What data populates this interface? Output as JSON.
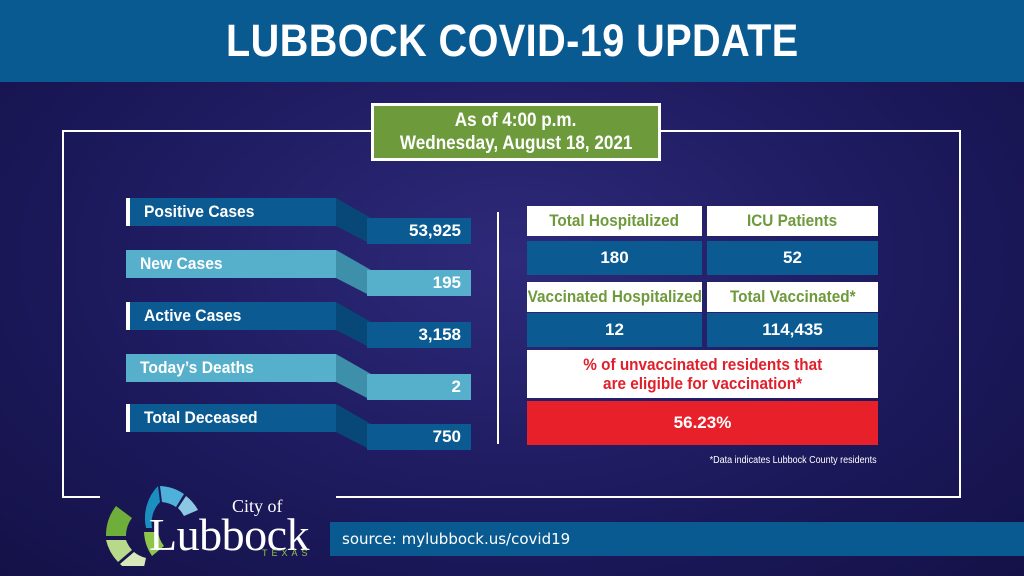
{
  "header": {
    "title": "LUBBOCK COVID-19 UPDATE"
  },
  "as_of": {
    "line1": "As of 4:00 p.m.",
    "line2": "Wednesday, August 18, 2021"
  },
  "left_stats": [
    {
      "label": "Positive Cases",
      "value": "53,925",
      "style": "dark"
    },
    {
      "label": "New Cases",
      "value": "195",
      "style": "light"
    },
    {
      "label": "Active Cases",
      "value": "3,158",
      "style": "dark"
    },
    {
      "label": "Today’s Deaths",
      "value": "2",
      "style": "light"
    },
    {
      "label": "Total Deceased",
      "value": "750",
      "style": "dark"
    }
  ],
  "right_stats": {
    "total_hospitalized": {
      "label": "Total Hospitalized",
      "value": "180"
    },
    "icu_patients": {
      "label": "ICU Patients",
      "value": "52"
    },
    "vaccinated_hospitalized": {
      "label": "Vaccinated Hospitalized",
      "value": "12"
    },
    "total_vaccinated": {
      "label": "Total Vaccinated*",
      "value": "114,435"
    },
    "unvaccinated": {
      "label_line1": "% of unvaccinated residents that",
      "label_line2": "are eligible for vaccination*",
      "value": "56.23%"
    }
  },
  "footnote": "*Data indicates Lubbock County residents",
  "footer": {
    "source": "source: mylubbock.us/covid19",
    "logo_city": "City of",
    "logo_name": "Lubbock",
    "logo_state": "TEXAS"
  },
  "colors": {
    "header_blue": "#0a5a92",
    "background_navy": "#1d1a5e",
    "label_green": "#6d9a3b",
    "light_blue": "#56b0cc",
    "alert_red": "#e8202a"
  }
}
